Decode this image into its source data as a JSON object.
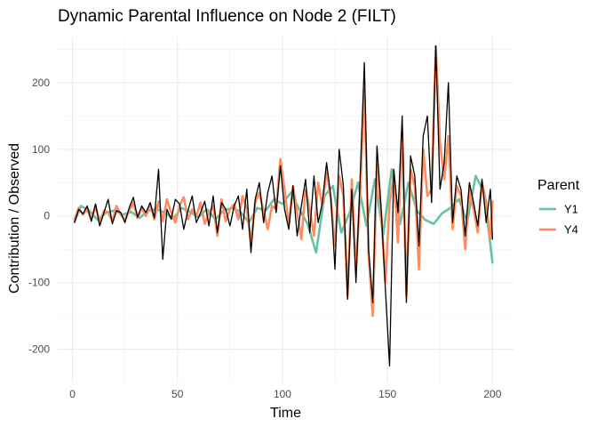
{
  "chart_data": {
    "type": "line",
    "title": "Dynamic Parental Influence on Node 2 (FILT)",
    "xlabel": "Time",
    "ylabel": "Contribution / Observed",
    "xlim": [
      -7,
      210
    ],
    "ylim": [
      -250,
      268
    ],
    "xticks": [
      0,
      50,
      100,
      150,
      200
    ],
    "yticks": [
      -200,
      -100,
      0,
      100,
      200
    ],
    "legend": {
      "title": "Parent",
      "position": "right",
      "entries": [
        {
          "label": "Y1",
          "color": "#66c2a5"
        },
        {
          "label": "Y4",
          "color": "#fc8d62"
        }
      ]
    },
    "observed_color": "#000000",
    "series": [
      {
        "name": "Y1",
        "color": "#66c2a5",
        "x": [
          1,
          4,
          8,
          12,
          16,
          20,
          24,
          28,
          32,
          36,
          40,
          44,
          48,
          52,
          56,
          60,
          64,
          68,
          72,
          76,
          80,
          84,
          88,
          92,
          96,
          100,
          104,
          108,
          112,
          116,
          120,
          124,
          128,
          132,
          136,
          140,
          144,
          148,
          152,
          156,
          160,
          164,
          168,
          172,
          176,
          180,
          184,
          188,
          192,
          196,
          200
        ],
        "y": [
          -8,
          15,
          8,
          -6,
          5,
          8,
          2,
          6,
          -3,
          8,
          10,
          5,
          -4,
          12,
          6,
          -2,
          10,
          -5,
          8,
          12,
          6,
          -10,
          12,
          8,
          25,
          18,
          35,
          10,
          -12,
          -55,
          30,
          45,
          -25,
          5,
          50,
          -15,
          55,
          -28,
          70,
          -12,
          50,
          8,
          -6,
          -12,
          4,
          12,
          25,
          -8,
          60,
          35,
          -70
        ]
      },
      {
        "name": "Y4",
        "color": "#fc8d62",
        "x": [
          1,
          3,
          5,
          7,
          9,
          11,
          13,
          15,
          17,
          19,
          21,
          23,
          25,
          27,
          29,
          31,
          33,
          35,
          37,
          39,
          41,
          43,
          45,
          47,
          49,
          51,
          53,
          55,
          57,
          59,
          61,
          63,
          65,
          67,
          69,
          71,
          73,
          75,
          77,
          79,
          81,
          83,
          85,
          87,
          89,
          91,
          93,
          95,
          97,
          99,
          101,
          103,
          105,
          107,
          109,
          111,
          113,
          115,
          117,
          119,
          121,
          123,
          125,
          127,
          129,
          131,
          133,
          135,
          137,
          139,
          141,
          143,
          145,
          147,
          149,
          151,
          153,
          155,
          157,
          159,
          161,
          163,
          165,
          167,
          169,
          171,
          173,
          175,
          177,
          179,
          181,
          183,
          185,
          187,
          189,
          191,
          193,
          195,
          197,
          199,
          200
        ],
        "y": [
          -5,
          12,
          2,
          10,
          -5,
          15,
          -10,
          8,
          5,
          -8,
          15,
          2,
          -6,
          8,
          20,
          -3,
          12,
          0,
          18,
          -5,
          22,
          -8,
          25,
          5,
          -10,
          15,
          28,
          -5,
          10,
          0,
          20,
          -12,
          5,
          15,
          -30,
          25,
          -8,
          10,
          18,
          -5,
          30,
          12,
          -42,
          20,
          35,
          8,
          -20,
          15,
          10,
          85,
          40,
          -15,
          45,
          5,
          -35,
          40,
          10,
          -30,
          50,
          15,
          70,
          25,
          -45,
          60,
          30,
          -120,
          55,
          -80,
          35,
          190,
          -60,
          -150,
          80,
          5,
          -100,
          20,
          60,
          -40,
          130,
          -120,
          70,
          45,
          -80,
          100,
          30,
          40,
          255,
          110,
          55,
          120,
          -20,
          45,
          30,
          -50,
          40,
          10,
          -25,
          50,
          20,
          -35,
          22
        ]
      },
      {
        "name": "Observed",
        "color": "#000000",
        "x": [
          1,
          3,
          5,
          7,
          9,
          11,
          13,
          15,
          17,
          19,
          21,
          23,
          25,
          27,
          29,
          31,
          33,
          35,
          37,
          39,
          41,
          43,
          45,
          47,
          49,
          51,
          53,
          55,
          57,
          59,
          61,
          63,
          65,
          67,
          69,
          71,
          73,
          75,
          77,
          79,
          81,
          83,
          85,
          87,
          89,
          91,
          93,
          95,
          97,
          99,
          101,
          103,
          105,
          107,
          109,
          111,
          113,
          115,
          117,
          119,
          121,
          123,
          125,
          127,
          129,
          131,
          133,
          135,
          137,
          139,
          141,
          143,
          145,
          147,
          149,
          151,
          153,
          155,
          157,
          159,
          161,
          163,
          165,
          167,
          169,
          171,
          173,
          175,
          177,
          179,
          181,
          183,
          185,
          187,
          189,
          191,
          193,
          195,
          197,
          199,
          200
        ],
        "y": [
          -10,
          10,
          3,
          15,
          -8,
          18,
          -15,
          5,
          25,
          -12,
          8,
          5,
          -10,
          12,
          28,
          -2,
          15,
          5,
          20,
          -3,
          70,
          -65,
          10,
          -5,
          25,
          18,
          -20,
          8,
          30,
          -10,
          5,
          22,
          -15,
          30,
          -25,
          20,
          10,
          -15,
          15,
          30,
          -20,
          40,
          -55,
          25,
          50,
          -10,
          35,
          60,
          5,
          75,
          10,
          -20,
          45,
          -30,
          15,
          55,
          -25,
          60,
          -10,
          20,
          80,
          30,
          -80,
          100,
          45,
          -125,
          40,
          -100,
          60,
          230,
          -50,
          -130,
          105,
          10,
          -110,
          -225,
          70,
          5,
          150,
          -130,
          90,
          60,
          -45,
          120,
          150,
          20,
          255,
          40,
          80,
          200,
          -10,
          60,
          40,
          -30,
          50,
          20,
          -15,
          55,
          -10,
          40,
          -35
        ]
      }
    ]
  }
}
